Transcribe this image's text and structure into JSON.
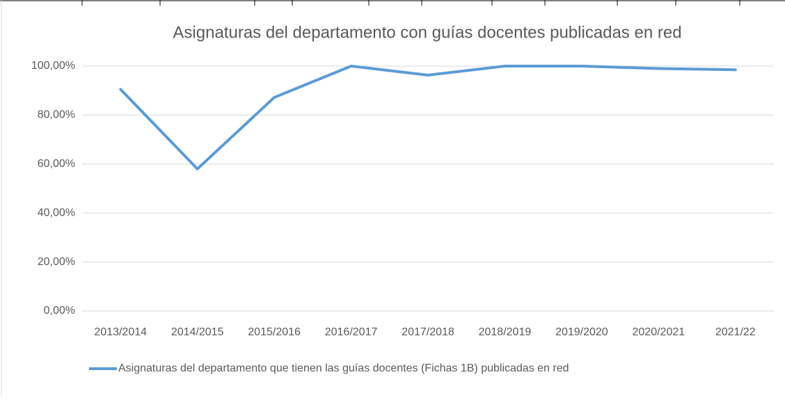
{
  "chart_data": {
    "type": "line",
    "title": "Asignaturas del departamento con guías docentes publicadas en red",
    "categories": [
      "2013/2014",
      "2014/2015",
      "2015/2016",
      "2016/2017",
      "2017/2018",
      "2018/2019",
      "2019/2020",
      "2020/2021",
      "2021/22"
    ],
    "series": [
      {
        "name": "Asignaturas del departamento que tienen las guías docentes (Fichas 1B) publicadas en red",
        "color": "#5b9bd5",
        "values": [
          90.5,
          58,
          87.2,
          100,
          96.3,
          100,
          100,
          99,
          98.5
        ]
      }
    ],
    "ylim": [
      0,
      100
    ],
    "yticks": [
      {
        "value": 0,
        "label": "0,00%"
      },
      {
        "value": 20,
        "label": "20,00%"
      },
      {
        "value": 40,
        "label": "40,00%"
      },
      {
        "value": 60,
        "label": "60,00%"
      },
      {
        "value": 80,
        "label": "80,00%"
      },
      {
        "value": 100,
        "label": "100,00%"
      }
    ],
    "grid": true,
    "legend": "bottom"
  }
}
